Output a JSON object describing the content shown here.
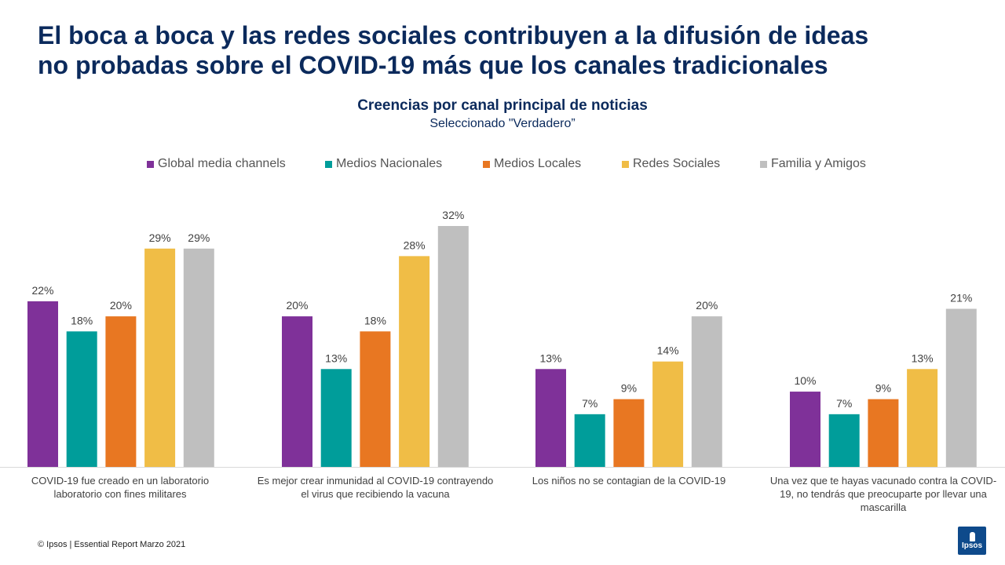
{
  "title": {
    "line1": "El boca a boca y las redes sociales contribuyen a la difusión de ideas",
    "line2": "no probadas sobre el COVID-19 más que los canales tradicionales"
  },
  "chart_data": {
    "type": "bar",
    "title": "Creencias por canal principal de noticias",
    "subtitle": "Seleccionado \"Verdadero”",
    "categories": [
      [
        "COVID-19 fue creado en un laboratorio",
        "laboratorio con fines militares"
      ],
      [
        "Es mejor crear inmunidad al COVID-19 contrayendo",
        "el virus que recibiendo la vacuna"
      ],
      [
        "Los niños no se contagian de la COVID-19"
      ],
      [
        "Una vez que te hayas vacunado contra la COVID-",
        "19, no tendrás que preocuparte por llevar una",
        "mascarilla"
      ]
    ],
    "series": [
      {
        "name": "Global media channels",
        "color": "#7f3199",
        "values": [
          22,
          20,
          13,
          10
        ]
      },
      {
        "name": "Medios Nacionales",
        "color": "#009d9a",
        "values": [
          18,
          13,
          7,
          7
        ]
      },
      {
        "name": "Medios Locales",
        "color": "#e87722",
        "values": [
          20,
          18,
          9,
          9
        ]
      },
      {
        "name": "Redes Sociales",
        "color": "#f0bd46",
        "values": [
          29,
          28,
          14,
          13
        ]
      },
      {
        "name": "Familia y Amigos",
        "color": "#bfbfbf",
        "values": [
          29,
          32,
          20,
          21
        ]
      }
    ],
    "value_suffix": "%",
    "ylim": [
      0,
      32
    ],
    "legend_position": "top",
    "grid": false
  },
  "footer": "© Ipsos  |  Essential Report  Marzo 2021",
  "logo_text": "Ipsos"
}
